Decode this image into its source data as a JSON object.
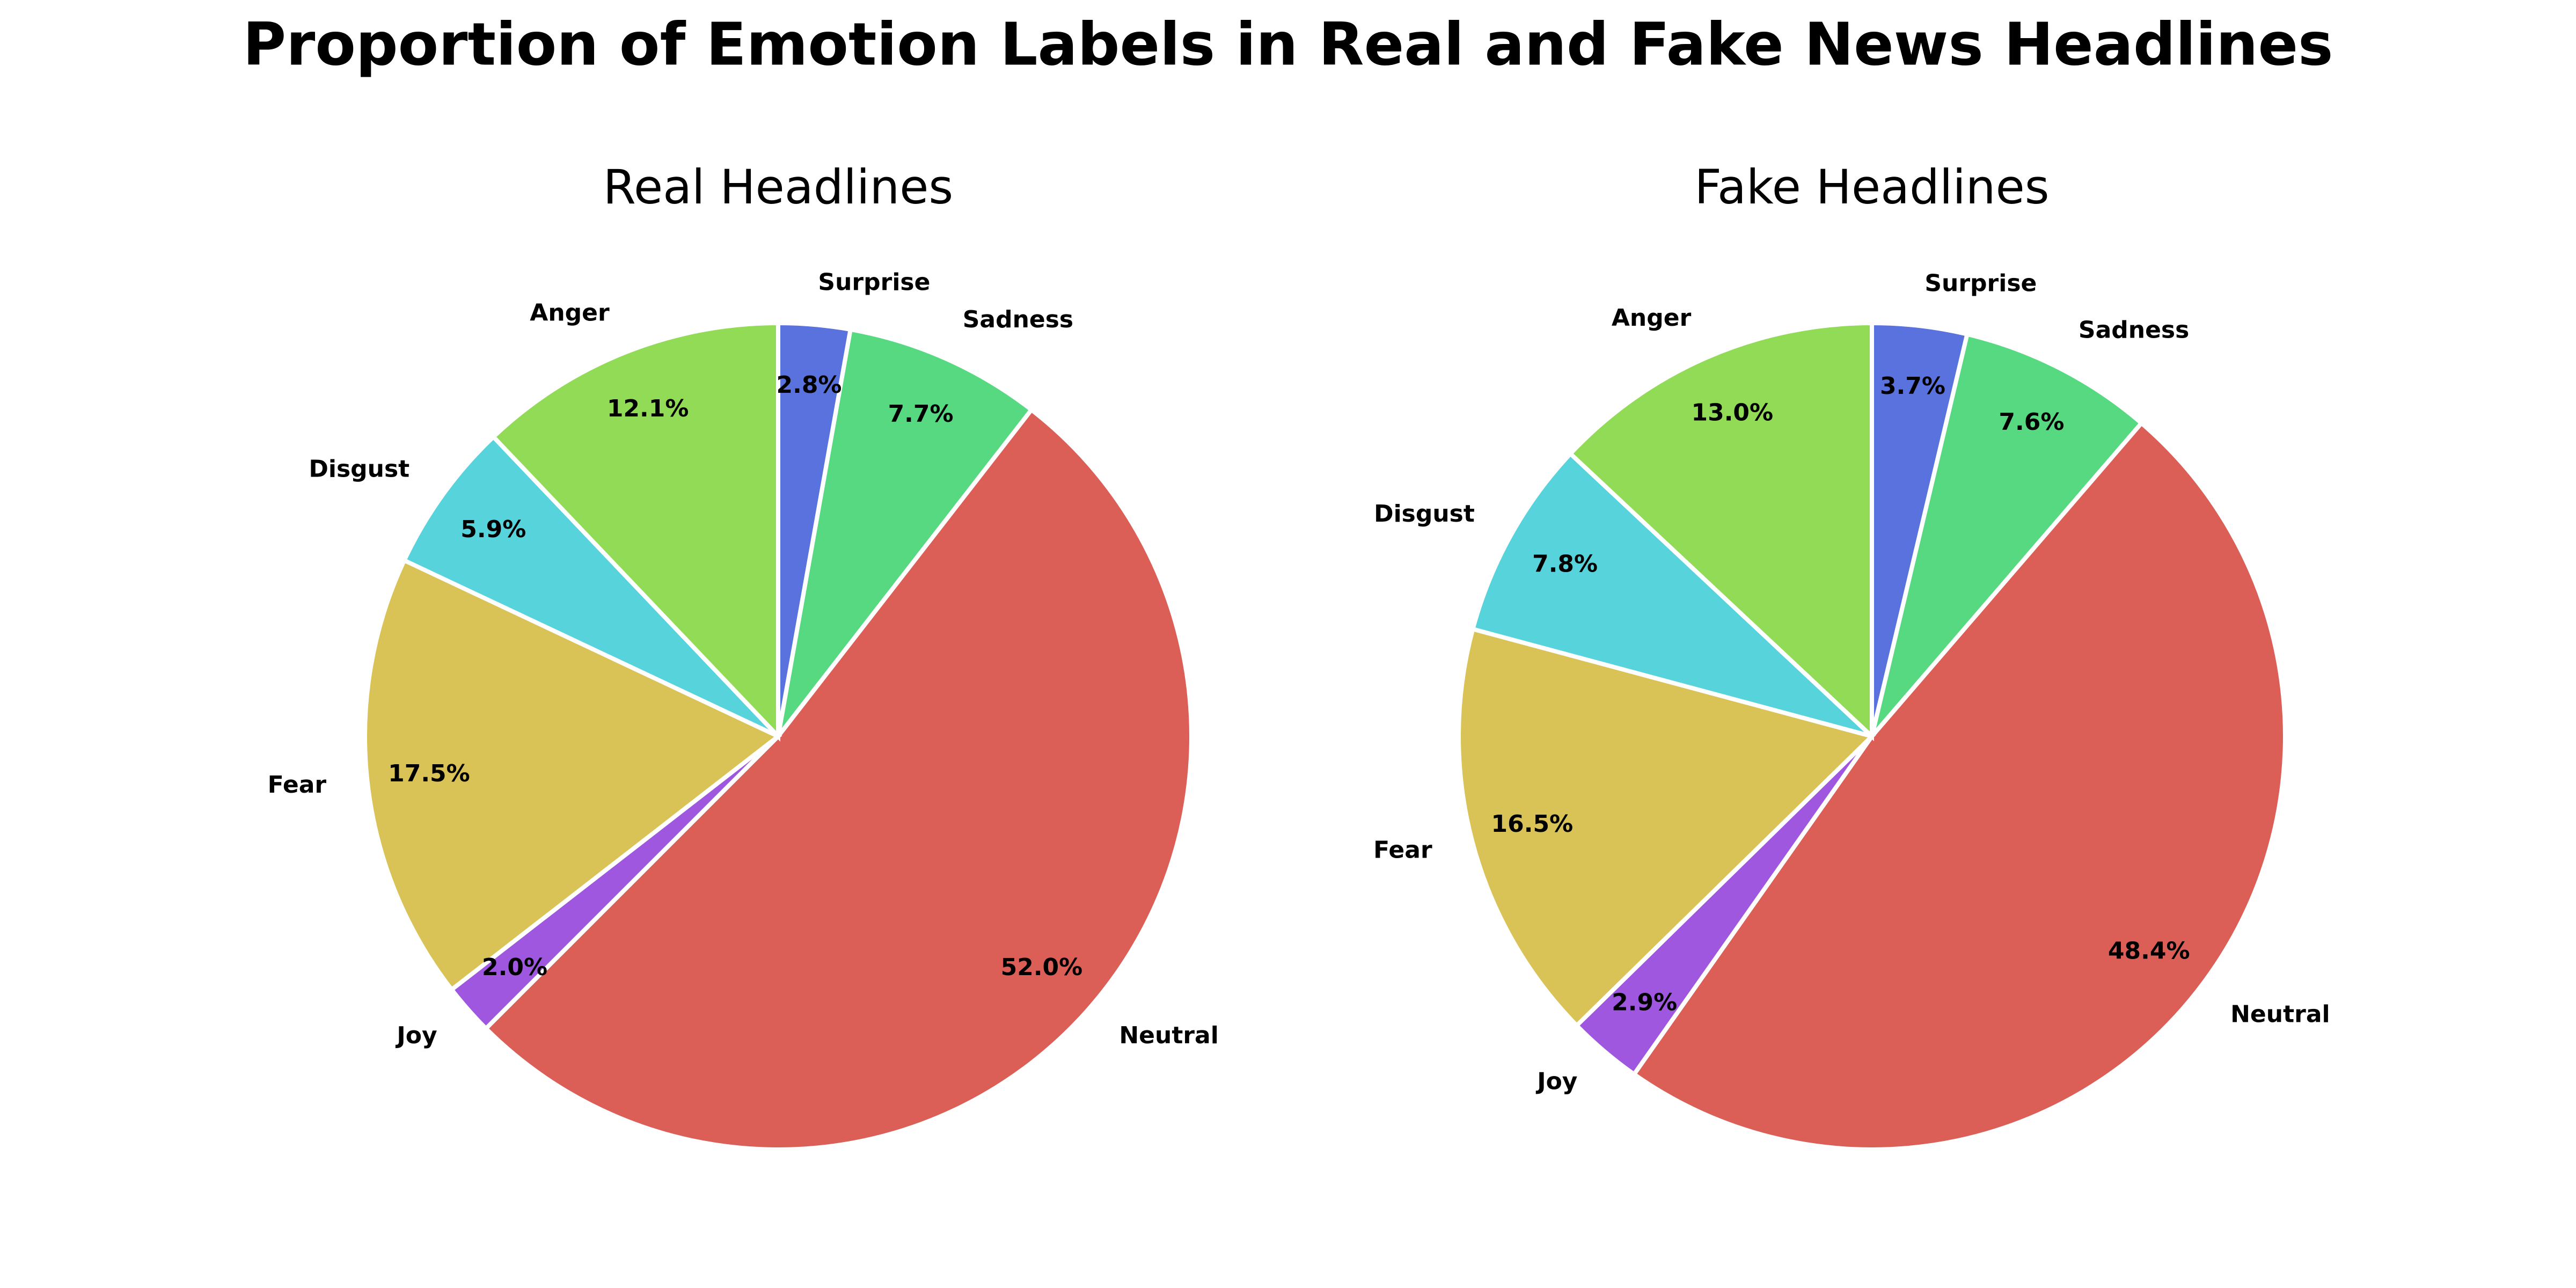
{
  "title": "Proportion of Emotion Labels in Real and Fake News Headlines",
  "chart_data": [
    {
      "type": "pie",
      "title": "Real Headlines",
      "start_angle_deg": 90,
      "direction": "clockwise",
      "slices": [
        {
          "label": "Surprise",
          "value": 2.8,
          "pct_label": "2.8%",
          "color": "#5a72de"
        },
        {
          "label": "Sadness",
          "value": 7.7,
          "pct_label": "7.7%",
          "color": "#57d982"
        },
        {
          "label": "Neutral",
          "value": 52.0,
          "pct_label": "52.0%",
          "color": "#db5f57"
        },
        {
          "label": "Joy",
          "value": 2.0,
          "pct_label": "2.0%",
          "color": "#9e57de"
        },
        {
          "label": "Fear",
          "value": 17.5,
          "pct_label": "17.5%",
          "color": "#d9c357"
        },
        {
          "label": "Disgust",
          "value": 5.9,
          "pct_label": "5.9%",
          "color": "#57d3db"
        },
        {
          "label": "Anger",
          "value": 12.1,
          "pct_label": "12.1%",
          "color": "#91db57"
        }
      ]
    },
    {
      "type": "pie",
      "title": "Fake Headlines",
      "start_angle_deg": 90,
      "direction": "clockwise",
      "slices": [
        {
          "label": "Surprise",
          "value": 3.7,
          "pct_label": "3.7%",
          "color": "#5a72de"
        },
        {
          "label": "Sadness",
          "value": 7.6,
          "pct_label": "7.6%",
          "color": "#57d982"
        },
        {
          "label": "Neutral",
          "value": 48.4,
          "pct_label": "48.4%",
          "color": "#db5f57"
        },
        {
          "label": "Joy",
          "value": 2.9,
          "pct_label": "2.9%",
          "color": "#9e57de"
        },
        {
          "label": "Fear",
          "value": 16.5,
          "pct_label": "16.5%",
          "color": "#d9c357"
        },
        {
          "label": "Disgust",
          "value": 7.8,
          "pct_label": "7.8%",
          "color": "#57d3db"
        },
        {
          "label": "Anger",
          "value": 13.0,
          "pct_label": "13.0%",
          "color": "#91db57"
        }
      ]
    }
  ]
}
